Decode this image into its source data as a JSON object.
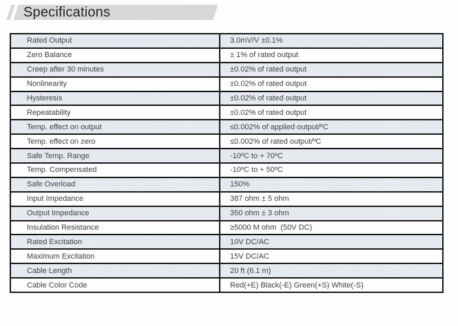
{
  "header": {
    "title": "Specifications",
    "banner_bg": "#d4d5d7",
    "title_color": "#242426"
  },
  "table": {
    "border_color": "#161616",
    "shaded_row_bg": "#e9edf2",
    "text_color": "#3e4145",
    "rows": [
      {
        "label": "Rated Output",
        "value": "3.0mV/V ±0.1%"
      },
      {
        "label": "Zero Balance",
        "value": "± 1% of rated output"
      },
      {
        "label": "Creep after 30 minutes",
        "value": "±0.02% of rated output"
      },
      {
        "label": "Nonlinearity",
        "value": "±0.02% of rated output"
      },
      {
        "label": "Hysteresis",
        "value": "±0.02% of rated output"
      },
      {
        "label": "Repeatability",
        "value": "±0.02% of rated output"
      },
      {
        "label": "Temp. effect on output",
        "value": "≤0.002% of applied output/ºC"
      },
      {
        "label": "Temp. effect on zero",
        "value": "≤0.002% of rated output/ºC"
      },
      {
        "label": "Safe Temp. Range",
        "value": "-10ºC to + 70ºC"
      },
      {
        "label": "Temp. Compensated",
        "value": "-10ºC to + 50ºC"
      },
      {
        "label": "Safe Overload",
        "value": "150%"
      },
      {
        "label": "Input Impedance",
        "value": "387 ohm ± 5 ohm"
      },
      {
        "label": "Output Impedance",
        "value": "350 ohm ± 3 ohm"
      },
      {
        "label": "Insulation Resistance",
        "value": "≥5000 M ohm  (50V DC)"
      },
      {
        "label": "Rated Excitation",
        "value": "10V DC/AC"
      },
      {
        "label": "Maximum Excitation",
        "value": "15V DC/AC"
      },
      {
        "label": "Cable Length",
        "value": "20 ft (6.1 m)"
      },
      {
        "label": "Cable Color Code",
        "value": "Red(+E) Black(-E) Green(+S) White(-S)"
      }
    ]
  }
}
